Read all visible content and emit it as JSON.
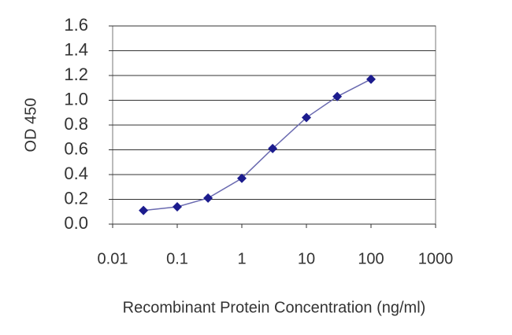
{
  "chart_data": {
    "type": "line",
    "x_label": "Recombinant Protein Concentration (ng/ml)",
    "y_label": "OD 450",
    "x": [
      0.03,
      0.1,
      0.3,
      1,
      3,
      10,
      30,
      100
    ],
    "series": [
      {
        "color": "#1c1c8e",
        "values": [
          0.11,
          0.14,
          0.21,
          0.37,
          0.61,
          0.86,
          1.03,
          1.17
        ]
      }
    ],
    "xscale": "log",
    "xlim": [
      0.01,
      1000
    ],
    "xticks": [
      0.01,
      0.1,
      1,
      10,
      100,
      1000
    ],
    "ylim": [
      0,
      1.6
    ],
    "yticks": [
      {
        "value": 0,
        "label": "0.0"
      },
      0.2,
      0.4,
      0.6,
      0.8,
      {
        "value": 1,
        "label": "1.0"
      },
      1.2,
      1.4,
      1.6
    ],
    "grid": true
  }
}
